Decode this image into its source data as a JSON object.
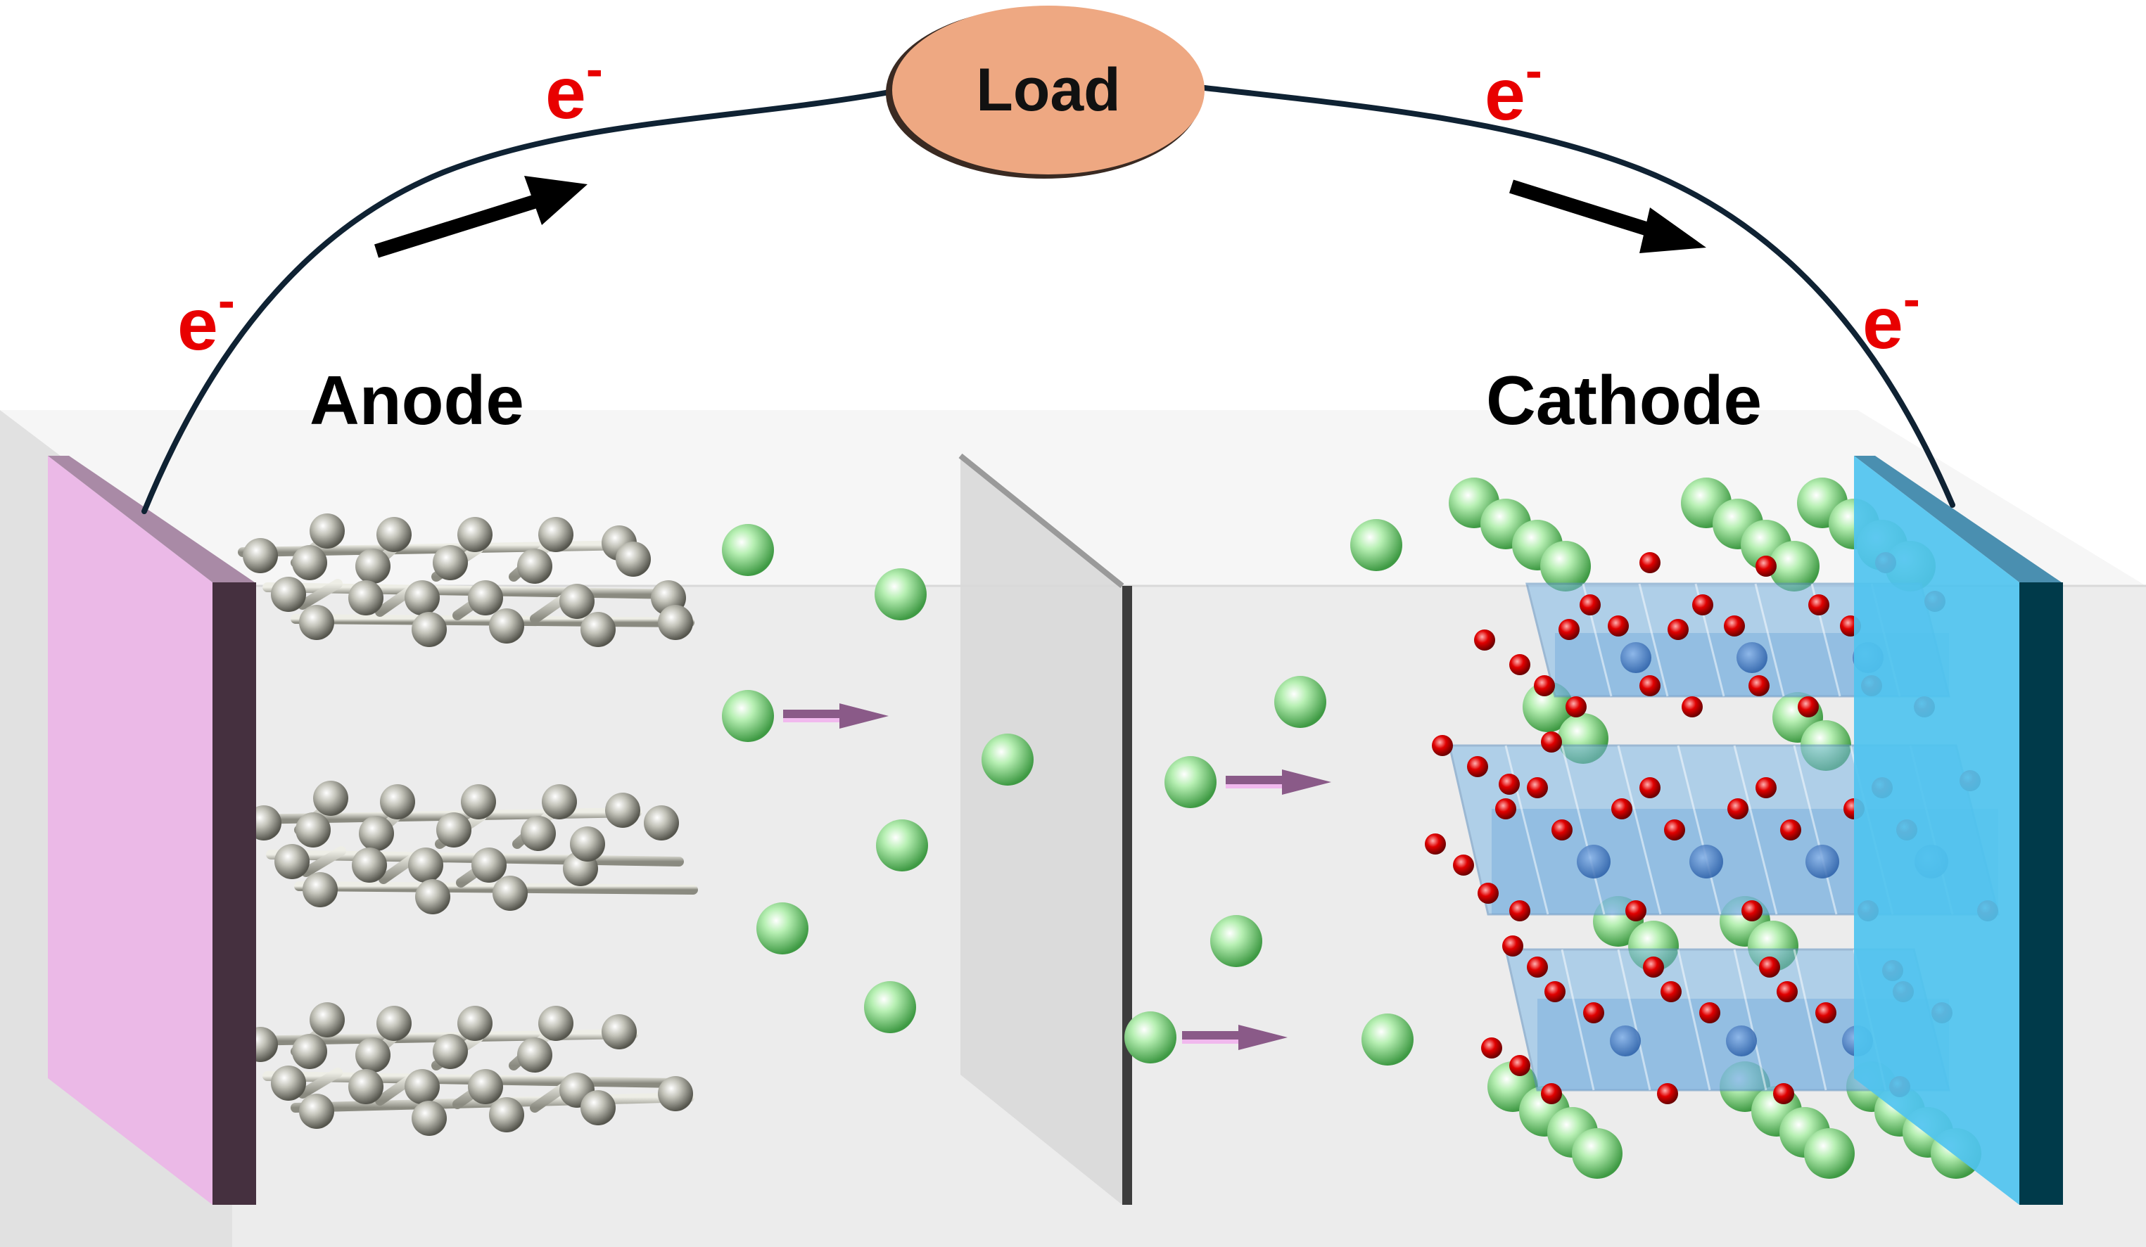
{
  "title": "",
  "labels": {
    "load": "Load",
    "anode": "Anode",
    "cathode": "Cathode",
    "electron_base": "e",
    "electron_charge": "-"
  },
  "colors": {
    "anode_current_collector": "#ebb9e7",
    "anode_collector_edge": "#45303f",
    "cathode_current_collector": "#4fc3ef",
    "cathode_collector_edge": "#003a4a",
    "wire": "#0f2233",
    "load": "#eea882",
    "electron_label": "#e80000",
    "li_ion": "#7fd37f",
    "carbon_atom": "#9a9a90",
    "oxygen_atom": "#e00000",
    "polyhedra": "#7fb8e6",
    "ion_arrow": "#8a5a88"
  },
  "icons": {
    "flow_arrow": "arrow-icon",
    "ion_arrow": "ion-arrow-icon"
  }
}
